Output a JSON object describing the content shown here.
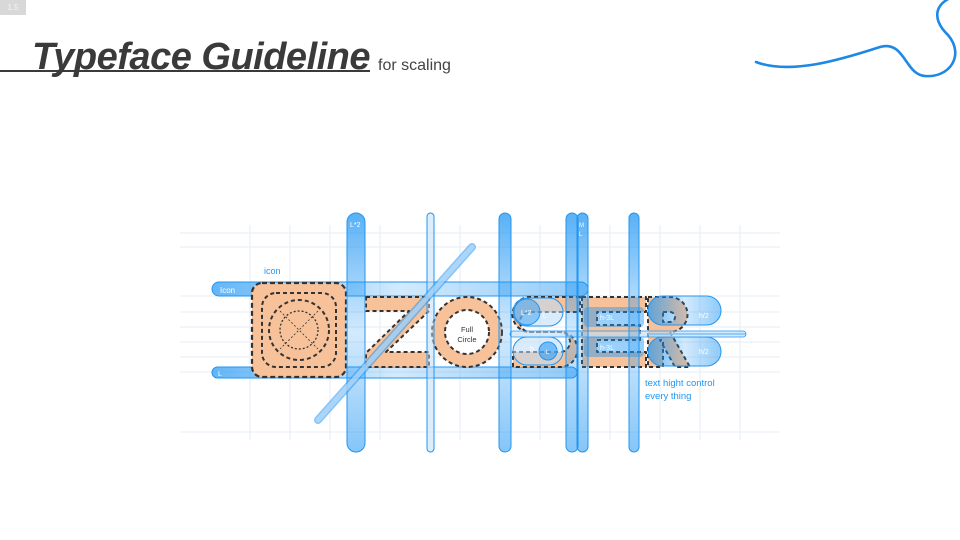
{
  "page": {
    "badge": "1.5",
    "title": "Typeface Guideline",
    "subtitle": "for scaling"
  },
  "diagram": {
    "word_letters": [
      "Z",
      "O",
      "S",
      "E",
      "R"
    ],
    "labels": {
      "icon_top": "icon",
      "icon_bar": "Icon",
      "bottom_bar": "L",
      "full_circle_line1": "Full",
      "full_circle_line2": "Circle",
      "l_times_2_col": "L*2",
      "m_col_line1": "M",
      "m_col_line2": "L",
      "s_top": "L*2",
      "s_top_small": "L",
      "s_bottom_left": "h",
      "s_bottom_small": "L",
      "e_top": "h-3L",
      "e_bottom": "h-3L",
      "r_top": "h/2",
      "r_bottom": "h/2",
      "note_line1": "text hight control",
      "note_line2": "every thing"
    },
    "colors": {
      "guide_blue": "#2196f3",
      "pill_fill": "#bcdcfa",
      "letter_fill": "#f7c29a",
      "outline": "#333333",
      "curve": "#1e88e5"
    }
  }
}
